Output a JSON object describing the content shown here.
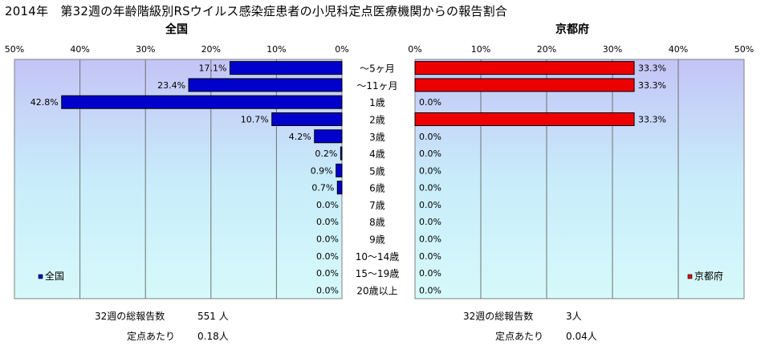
{
  "header": {
    "title": "2014年　第32週の年齢階級別RSウイルス感染症患者の小児科定点医療機関からの報告割合"
  },
  "chart_data": [
    {
      "type": "bar",
      "orientation": "horizontal",
      "x_direction": "reversed",
      "title": "全国",
      "legend": "全国",
      "legend_position": "bottom-left",
      "color": "#0000cc",
      "xlim": [
        0,
        50
      ],
      "x_ticks": [
        "0%",
        "10%",
        "20%",
        "30%",
        "40%",
        "50%"
      ],
      "grid": true,
      "categories": [
        "～5ヶ月",
        "～11ヶ月",
        "1歳",
        "2歳",
        "3歳",
        "4歳",
        "5歳",
        "6歳",
        "7歳",
        "8歳",
        "9歳",
        "10～14歳",
        "15～19歳",
        "20歳以上"
      ],
      "values": [
        17.1,
        23.4,
        42.8,
        10.7,
        4.2,
        0.2,
        0.9,
        0.7,
        0.0,
        0.0,
        0.0,
        0.0,
        0.0,
        0.0
      ],
      "labels": [
        "17.1%",
        "23.4%",
        "42.8%",
        "10.7%",
        "4.2%",
        "0.2%",
        "0.9%",
        "0.7%",
        "0.0%",
        "0.0%",
        "0.0%",
        "0.0%",
        "0.0%",
        "0.0%"
      ]
    },
    {
      "type": "bar",
      "orientation": "horizontal",
      "title": "京都府",
      "legend": "京都府",
      "legend_position": "bottom-right",
      "color": "#ee0000",
      "xlim": [
        0,
        50
      ],
      "x_ticks": [
        "0%",
        "10%",
        "20%",
        "30%",
        "40%",
        "50%"
      ],
      "grid": true,
      "categories": [
        "～5ヶ月",
        "～11ヶ月",
        "1歳",
        "2歳",
        "3歳",
        "4歳",
        "5歳",
        "6歳",
        "7歳",
        "8歳",
        "9歳",
        "10～14歳",
        "15～19歳",
        "20歳以上"
      ],
      "values": [
        33.3,
        33.3,
        0.0,
        33.3,
        0.0,
        0.0,
        0.0,
        0.0,
        0.0,
        0.0,
        0.0,
        0.0,
        0.0,
        0.0
      ],
      "labels": [
        "33.3%",
        "33.3%",
        "0.0%",
        "33.3%",
        "0.0%",
        "0.0%",
        "0.0%",
        "0.0%",
        "0.0%",
        "0.0%",
        "0.0%",
        "0.0%",
        "0.0%",
        "0.0%"
      ]
    }
  ],
  "stats": {
    "national": {
      "total_label": "32週の総報告数",
      "total_value": "551 人",
      "per_label": "定点あたり",
      "per_value": "0.18人"
    },
    "kyoto": {
      "total_label": "32週の総報告数",
      "total_value": "3人",
      "per_label": "定点あたり",
      "per_value": "0.04人"
    }
  }
}
